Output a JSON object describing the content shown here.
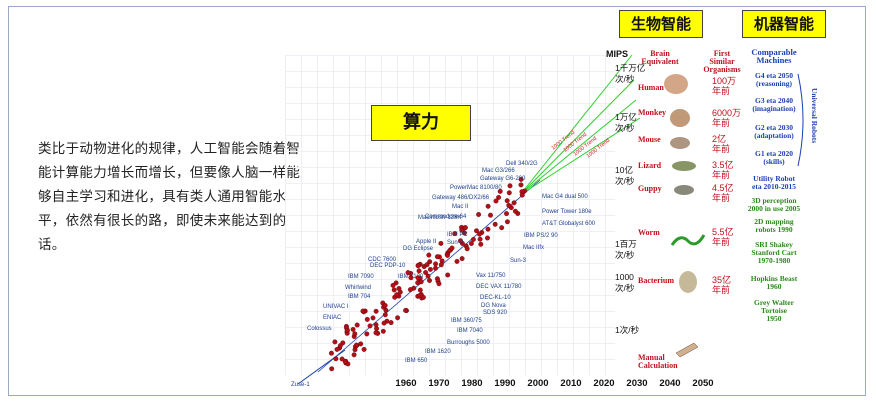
{
  "intro_text": "类比于动物进化的规律，人工智能会随着智能计算能力增长而增长，但要像人脑一样能够自主学习和进化，具有类人通用智能水平，依然有很长的路，即使未来能达到的话。",
  "labels": {
    "compute": "算力",
    "biological": "生物智能",
    "machine": "机器智能"
  },
  "axis": {
    "title": "MIPS",
    "years": [
      "1960",
      "1970",
      "1980",
      "1990",
      "2000",
      "2010",
      "2020",
      "2030",
      "2040",
      "2050"
    ],
    "mips_ticks": [
      "1千万亿\n次/秒",
      "1万亿\n次/秒",
      "10亿\n次/秒",
      "1百万\n次/秒",
      "1000\n次/秒",
      "1次/秒"
    ]
  },
  "machines_plotted": [
    "Dell 340/2G",
    "Mac G3/266",
    "Gateway G6-200",
    "PowerMac 8100/80",
    "Gateway 486/DX2/66",
    "Mac II",
    "Commodore 64",
    "Macintosh-128K",
    "Apple II",
    "DG Eclipse",
    "IBM PC",
    "Sun-2",
    "CDC 7600",
    "DEC PDP-10",
    "IBM 1130",
    "IBM 7090",
    "Whirlwind",
    "IBM 704",
    "UNIVAC I",
    "ENIAC",
    "Colossus",
    "Zuse-1",
    "Mac G4 dual 500",
    "Power Tower 180e",
    "AT&T Globalyst 600",
    "IBM PS/2 90",
    "Mac IIfx",
    "Sun-3",
    "Vax 11/750",
    "DEC VAX 11/780",
    "DEC-KL-10",
    "DG Nova",
    "SDS 920",
    "IBM 360/75",
    "IBM 7040",
    "Burroughs 5000",
    "IBM 1620",
    "IBM 650"
  ],
  "trend_labels": [
    "1000 Trend",
    "1000 Trend",
    "1000 Trend",
    "1000 Trend"
  ],
  "biological": {
    "headers": [
      "Brain\nEquivalent",
      "First\nSimilar\nOrganisms"
    ],
    "organisms": [
      {
        "name": "Human",
        "ago": "100万\n年前"
      },
      {
        "name": "Monkey",
        "ago": "6000万\n年前"
      },
      {
        "name": "Mouse",
        "ago": "2亿\n年前"
      },
      {
        "name": "Lizard",
        "ago": "3.5亿\n年前"
      },
      {
        "name": "Guppy",
        "ago": "4.5亿\n年前"
      },
      {
        "name": "Worm",
        "ago": "5.5亿\n年前"
      },
      {
        "name": "Bacterium",
        "ago": "35亿\n年前"
      },
      {
        "name": "Manual\nCalculation",
        "ago": ""
      }
    ]
  },
  "machine_intel": {
    "header": "Comparable\nMachines",
    "blue_items": [
      "G4 eta 2050\n(reasoning)",
      "G3 eta 2040\n(imagination)",
      "G2 eta 2030\n(adaptation)",
      "G1 eta 2020\n(skills)",
      "Utility Robot\neta 2010-2015"
    ],
    "green_items": [
      "3D perception\n2000 in use 2005",
      "2D mapping\nrobots 1990",
      "SRI Shakey\nStanford Cart\n1970-1980",
      "Hopkins Beast\n1960",
      "Grey Walter\nTortoise\n1950"
    ],
    "robots_label": "Universal Robots"
  },
  "colors": {
    "accent_yellow": "#ffff00",
    "org_red": "#c0101a",
    "machine_blue": "#1a3fb0",
    "machine_green": "#2a8a1a",
    "trend_green": "#2bd02b"
  }
}
